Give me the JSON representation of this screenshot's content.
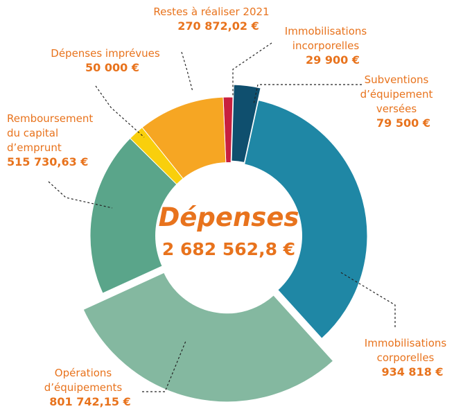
{
  "chart_data": {
    "type": "donut",
    "center_title": "Dépenses",
    "total": 2682562.8,
    "total_label": "2 682 562,8 €",
    "categories": [
      [
        "Immobilisations",
        "incorporelles"
      ],
      [
        "Subventions",
        "d’équipement",
        "versées"
      ],
      [
        "Immobilisations",
        "corporelles"
      ],
      [
        "Opérations",
        "d’équipements"
      ],
      [
        "Remboursement",
        "du capital",
        "d’emprunt"
      ],
      [
        "Dépenses imprévues"
      ],
      [
        "Restes à réaliser 2021"
      ]
    ],
    "values": [
      29900,
      79500,
      934818,
      801742.15,
      515730.63,
      50000,
      270872.02
    ],
    "value_labels": [
      "29 900 €",
      "79 500 €",
      "934 818 €",
      "801 742,15 €",
      "515 730,63 €",
      "50 000 €",
      "270 872,02 €"
    ],
    "colors": [
      "#c8203f",
      "#0f4f6e",
      "#1f87a5",
      "#84b8a0",
      "#5aa58a",
      "#f9cf0c",
      "#f6a623"
    ]
  }
}
